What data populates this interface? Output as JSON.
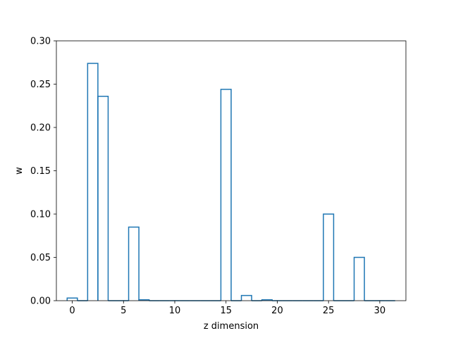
{
  "chart_data": {
    "type": "bar",
    "style": "step-histogram",
    "title": "",
    "xlabel": "z dimension",
    "ylabel": "w",
    "xlim": [
      -1.55,
      32.55
    ],
    "ylim": [
      0,
      0.3
    ],
    "xticks": [
      0,
      5,
      10,
      15,
      20,
      25,
      30
    ],
    "yticks": [
      0.0,
      0.05,
      0.1,
      0.15,
      0.2,
      0.25,
      0.3
    ],
    "xtick_labels": [
      "0",
      "5",
      "10",
      "15",
      "20",
      "25",
      "30"
    ],
    "ytick_labels": [
      "0.00",
      "0.05",
      "0.10",
      "0.15",
      "0.20",
      "0.25",
      "0.30"
    ],
    "grid": false,
    "legend": "none",
    "color": "#1f77b4",
    "series": [
      {
        "x": [
          0,
          1,
          2,
          3,
          4,
          5,
          6,
          7,
          8,
          9,
          10,
          11,
          12,
          13,
          14,
          15,
          16,
          17,
          18,
          19,
          20,
          21,
          22,
          23,
          24,
          25,
          26,
          27,
          28,
          29,
          30,
          31
        ],
        "values": [
          0.003,
          0.0,
          0.274,
          0.236,
          0.0,
          0.0,
          0.085,
          0.001,
          0.0,
          0.0,
          0.0,
          0.0,
          0.0,
          0.0,
          0.0,
          0.244,
          0.0,
          0.006,
          0.0,
          0.001,
          0.0,
          0.0,
          0.0,
          0.0,
          0.0,
          0.1,
          0.0,
          0.0,
          0.05,
          0.0,
          0.0,
          0.0
        ]
      }
    ]
  }
}
